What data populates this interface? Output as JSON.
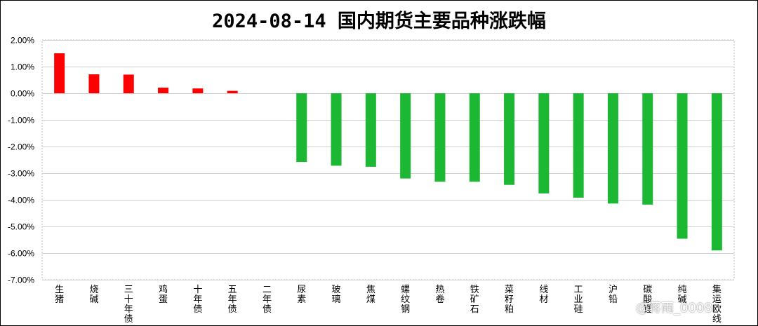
{
  "chart_data": {
    "type": "bar",
    "title": "2024-08-14 国内期货主要品种涨跌幅",
    "categories": [
      "生猪",
      "烧碱",
      "三十年债",
      "鸡蛋",
      "十年债",
      "五年债",
      "二年债",
      "尿素",
      "玻璃",
      "焦煤",
      "螺纹钢",
      "热卷",
      "铁矿石",
      "菜籽粕",
      "线材",
      "工业硅",
      "沪铅",
      "碳酸锂",
      "纯碱",
      "集运欧线"
    ],
    "series": [
      {
        "values": [
          1.5,
          0.71,
          0.7,
          0.21,
          0.18,
          0.09,
          0.0,
          -2.58,
          -2.72,
          -2.76,
          -3.2,
          -3.32,
          -3.32,
          -3.44,
          -3.76,
          -3.92,
          -4.14,
          -4.18,
          -5.46,
          -5.9
        ]
      }
    ],
    "ylim": [
      -7.0,
      2.0
    ],
    "yticks": [
      "2.00%",
      "1.00%",
      "0.00%",
      "-1.00%",
      "-2.00%",
      "-3.00%",
      "-4.00%",
      "-5.00%",
      "-6.00%",
      "-7.00%"
    ],
    "xlabel": "",
    "ylabel": "",
    "grid": true,
    "legend": "none",
    "colors": {
      "positive": "#ff0000",
      "negative": "#1db833"
    }
  },
  "watermark": "@蒋雨_0008"
}
